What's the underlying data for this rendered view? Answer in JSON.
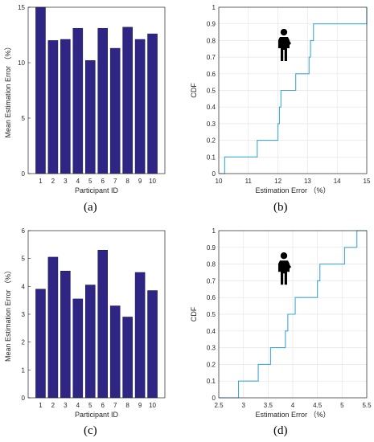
{
  "panel_labels": [
    "(a)",
    "(b)",
    "(c)",
    "(d)"
  ],
  "colors": {
    "bar": "#2e2585",
    "cdf": "#3fa9d8",
    "axis": "#262626",
    "grid": "#e6e6e6"
  },
  "icon": "standing-person-icon",
  "chart_data": [
    {
      "type": "bar",
      "categories": [
        "1",
        "2",
        "3",
        "4",
        "5",
        "6",
        "7",
        "8",
        "9",
        "10"
      ],
      "values": [
        15.0,
        12.0,
        12.1,
        13.1,
        10.2,
        13.1,
        11.3,
        13.2,
        12.1,
        12.6
      ],
      "title": "",
      "xlabel": "Participant ID",
      "ylabel": "Mean Estimation Error （%）",
      "ylim": [
        0,
        15
      ],
      "yticks": [
        "0",
        "5",
        "10",
        "15"
      ],
      "grid": false
    },
    {
      "type": "line",
      "step": true,
      "x": [
        10,
        10.2,
        11.3,
        12.0,
        12.05,
        12.1,
        12.6,
        13.05,
        13.1,
        13.2,
        15
      ],
      "y": [
        0,
        0.1,
        0.2,
        0.3,
        0.4,
        0.5,
        0.6,
        0.7,
        0.8,
        0.9,
        1.0
      ],
      "title": "",
      "xlabel": "Estimation Error （%）",
      "ylabel": "CDF",
      "xlim": [
        10,
        15
      ],
      "ylim": [
        0,
        1
      ],
      "xticks": [
        "10",
        "11",
        "12",
        "13",
        "14",
        "15"
      ],
      "yticks": [
        "0",
        "0.1",
        "0.2",
        "0.3",
        "0.4",
        "0.5",
        "0.6",
        "0.7",
        "0.8",
        "0.9",
        "1"
      ],
      "grid": true
    },
    {
      "type": "bar",
      "categories": [
        "1",
        "2",
        "3",
        "4",
        "5",
        "6",
        "7",
        "8",
        "9",
        "10"
      ],
      "values": [
        3.9,
        5.05,
        4.55,
        3.55,
        4.05,
        5.3,
        3.3,
        2.9,
        4.5,
        3.85
      ],
      "title": "",
      "xlabel": "Participant ID",
      "ylabel": "Mean Estimation Error （%）",
      "ylim": [
        0,
        6
      ],
      "yticks": [
        "0",
        "1",
        "2",
        "3",
        "4",
        "5",
        "6"
      ],
      "grid": false
    },
    {
      "type": "line",
      "step": true,
      "x": [
        2.5,
        2.9,
        3.3,
        3.55,
        3.85,
        3.9,
        4.05,
        4.5,
        4.55,
        5.05,
        5.3,
        5.5
      ],
      "y": [
        0,
        0.1,
        0.2,
        0.3,
        0.4,
        0.5,
        0.6,
        0.7,
        0.8,
        0.9,
        1.0,
        1.0
      ],
      "title": "",
      "xlabel": "Estimation Error （%）",
      "ylabel": "CDF",
      "xlim": [
        2.5,
        5.5
      ],
      "ylim": [
        0,
        1
      ],
      "xticks": [
        "2.5",
        "3",
        "3.5",
        "4",
        "4.5",
        "5",
        "5.5"
      ],
      "yticks": [
        "0",
        "0.1",
        "0.2",
        "0.3",
        "0.4",
        "0.5",
        "0.6",
        "0.7",
        "0.8",
        "0.9",
        "1"
      ],
      "grid": true
    }
  ]
}
